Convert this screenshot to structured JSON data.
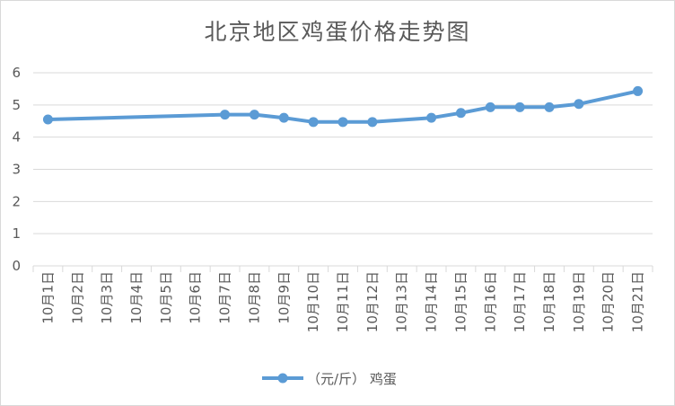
{
  "title": "北京地区鸡蛋价格走势图",
  "legend": {
    "position": "bottom"
  },
  "colors": {
    "series": "#5b9bd5",
    "grid": "#d9d9d9",
    "text": "#595959"
  },
  "chart_data": {
    "type": "line",
    "title": "北京地区鸡蛋价格走势图",
    "xlabel": "",
    "ylabel": "",
    "ylim": [
      0,
      6
    ],
    "yticks": [
      0,
      1,
      2,
      3,
      4,
      5,
      6
    ],
    "grid": true,
    "legend_position": "bottom",
    "categories": [
      "10月1日",
      "10月2日",
      "10月3日",
      "10月4日",
      "10月5日",
      "10月6日",
      "10月7日",
      "10月8日",
      "10月9日",
      "10月10日",
      "10月11日",
      "10月12日",
      "10月13日",
      "10月14日",
      "10月15日",
      "10月16日",
      "10月17日",
      "10月18日",
      "10月19日",
      "10月20日",
      "10月21日"
    ],
    "series": [
      {
        "name": "（元/斤） 鸡蛋",
        "values": [
          4.55,
          null,
          null,
          null,
          null,
          null,
          4.7,
          4.7,
          4.6,
          4.47,
          4.47,
          4.47,
          null,
          4.6,
          4.75,
          4.93,
          4.93,
          4.93,
          5.03,
          null,
          5.43
        ]
      }
    ]
  }
}
